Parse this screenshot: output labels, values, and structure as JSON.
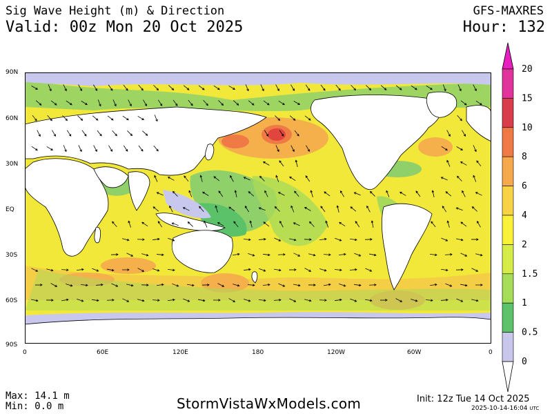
{
  "header": {
    "title": "Sig Wave Height (m) & Direction",
    "valid": "Valid: 00z Mon 20 Oct 2025",
    "model": "GFS-MAXRES",
    "hour": "Hour: 132"
  },
  "map": {
    "lat_labels": [
      "90N",
      "60N",
      "30N",
      "EQ",
      "30S",
      "60S",
      "90S"
    ],
    "lon_labels": [
      "0",
      "60E",
      "120E",
      "180",
      "120W",
      "60W",
      "0"
    ],
    "colors": {
      "ocean": "#f2e83a",
      "calm": "#8fd06a",
      "green": "#5cc26a",
      "orange": "#f5b04c",
      "red": "#e2453d",
      "ice": "#c8c8ee",
      "land": "#ffffff"
    }
  },
  "colorbar": {
    "labels": [
      "20",
      "15",
      "10",
      "8",
      "6",
      "4",
      "2",
      "1.5",
      "1",
      "0.5",
      "0"
    ],
    "colors": [
      "#e0339b",
      "#d93c4a",
      "#ef7a45",
      "#f5a84c",
      "#f7d345",
      "#f9f03a",
      "#d5ec48",
      "#a5dc58",
      "#5cc36a",
      "#c9c6ec"
    ],
    "top_color": "#e61fbe"
  },
  "footer": {
    "max": "Max: 14.1 m",
    "min": "Min: 0.0 m",
    "site": "StormVistaWxModels.com",
    "init": "Init: 12z Tue 14 Oct 2025",
    "stamp": "2025-10-14-16:04",
    "stamp_utc": "UTC"
  }
}
